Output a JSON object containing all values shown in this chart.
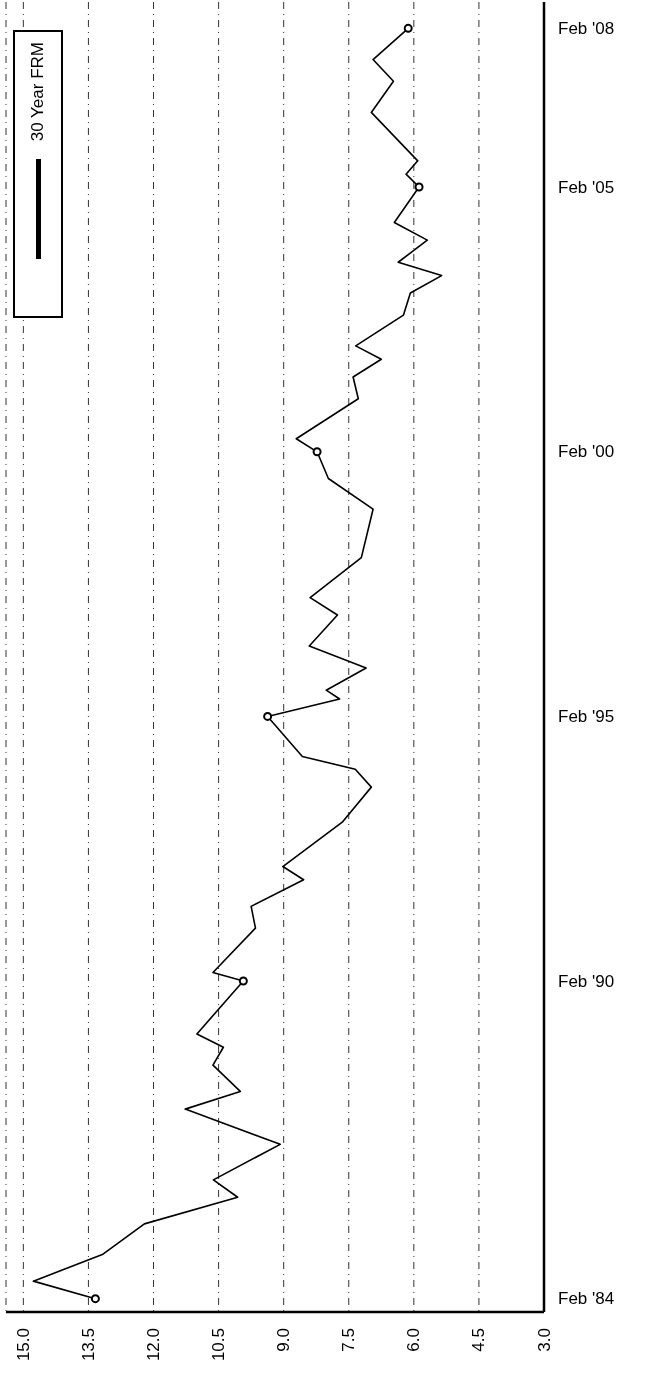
{
  "chart_data": {
    "type": "line",
    "orientation": "horizontal",
    "legend": "top left",
    "grid": "x",
    "xlim": [
      15.4,
      3.0
    ],
    "xticks": [
      {
        "value": 15,
        "label": "15.0"
      },
      13.5,
      {
        "value": 12,
        "label": "12.0"
      },
      10.5,
      {
        "value": 9,
        "label": "9.0"
      },
      7.5,
      {
        "value": 6,
        "label": "6.0"
      },
      4.5,
      {
        "value": 3,
        "label": "3.0"
      }
    ],
    "ylim": [
      "1983-11",
      "2008-08"
    ],
    "yticks": [
      {
        "value": "1984-02",
        "label": "Feb '84"
      },
      {
        "value": "1990-02",
        "label": "Feb '90"
      },
      {
        "value": "1995-02",
        "label": "Feb '95"
      },
      {
        "value": "2000-02",
        "label": "Feb '00"
      },
      {
        "value": "2005-02",
        "label": "Feb '05"
      },
      {
        "value": "2008-02",
        "label": "Feb '08"
      }
    ],
    "series": [
      {
        "name": "30 Year FRM",
        "color": "#000000",
        "marker": "none",
        "x": [
          "1984-02",
          "1984-06",
          "1984-12",
          "1985-07",
          "1986-01",
          "1986-05",
          "1987-01",
          "1987-09",
          "1988-01",
          "1988-07",
          "1988-11",
          "1989-02",
          "1990-02",
          "1990-04",
          "1991-02",
          "1991-07",
          "1992-01",
          "1992-04",
          "1993-02",
          "1993-10",
          "1994-02",
          "1994-05",
          "1995-02",
          "1995-06",
          "1995-08",
          "1996-01",
          "1996-06",
          "1997-01",
          "1997-05",
          "1998-02",
          "1999-01",
          "1999-08",
          "2000-02",
          "2000-05",
          "2001-02",
          "2001-07",
          "2001-11",
          "2002-02",
          "2002-09",
          "2003-02",
          "2003-06",
          "2003-09",
          "2004-02",
          "2004-06",
          "2005-02",
          "2005-05",
          "2005-08",
          "2006-07",
          "2007-02",
          "2007-07",
          "2008-02"
        ],
        "values": [
          13.34,
          14.77,
          13.18,
          12.21,
          10.06,
          10.62,
          9.08,
          11.27,
          10.0,
          10.63,
          10.39,
          11.0,
          9.93,
          10.63,
          9.65,
          9.75,
          8.54,
          9.02,
          7.65,
          6.98,
          7.35,
          8.57,
          9.37,
          7.71,
          8.02,
          7.1,
          8.41,
          7.76,
          8.39,
          7.21,
          6.94,
          7.97,
          8.23,
          8.71,
          7.28,
          7.4,
          6.75,
          7.34,
          6.24,
          6.08,
          5.36,
          6.36,
          5.69,
          6.45,
          5.88,
          6.18,
          5.91,
          6.98,
          6.47,
          6.94,
          6.13
        ]
      },
      {
        "type": "scatter",
        "color": "#000000",
        "marker": "circle",
        "x": [
          "1984-02",
          "1990-02",
          "1995-02",
          "2000-02",
          "2005-02",
          "2008-02"
        ],
        "values": [
          13.34,
          9.93,
          9.37,
          8.23,
          5.88,
          6.13
        ]
      }
    ]
  }
}
